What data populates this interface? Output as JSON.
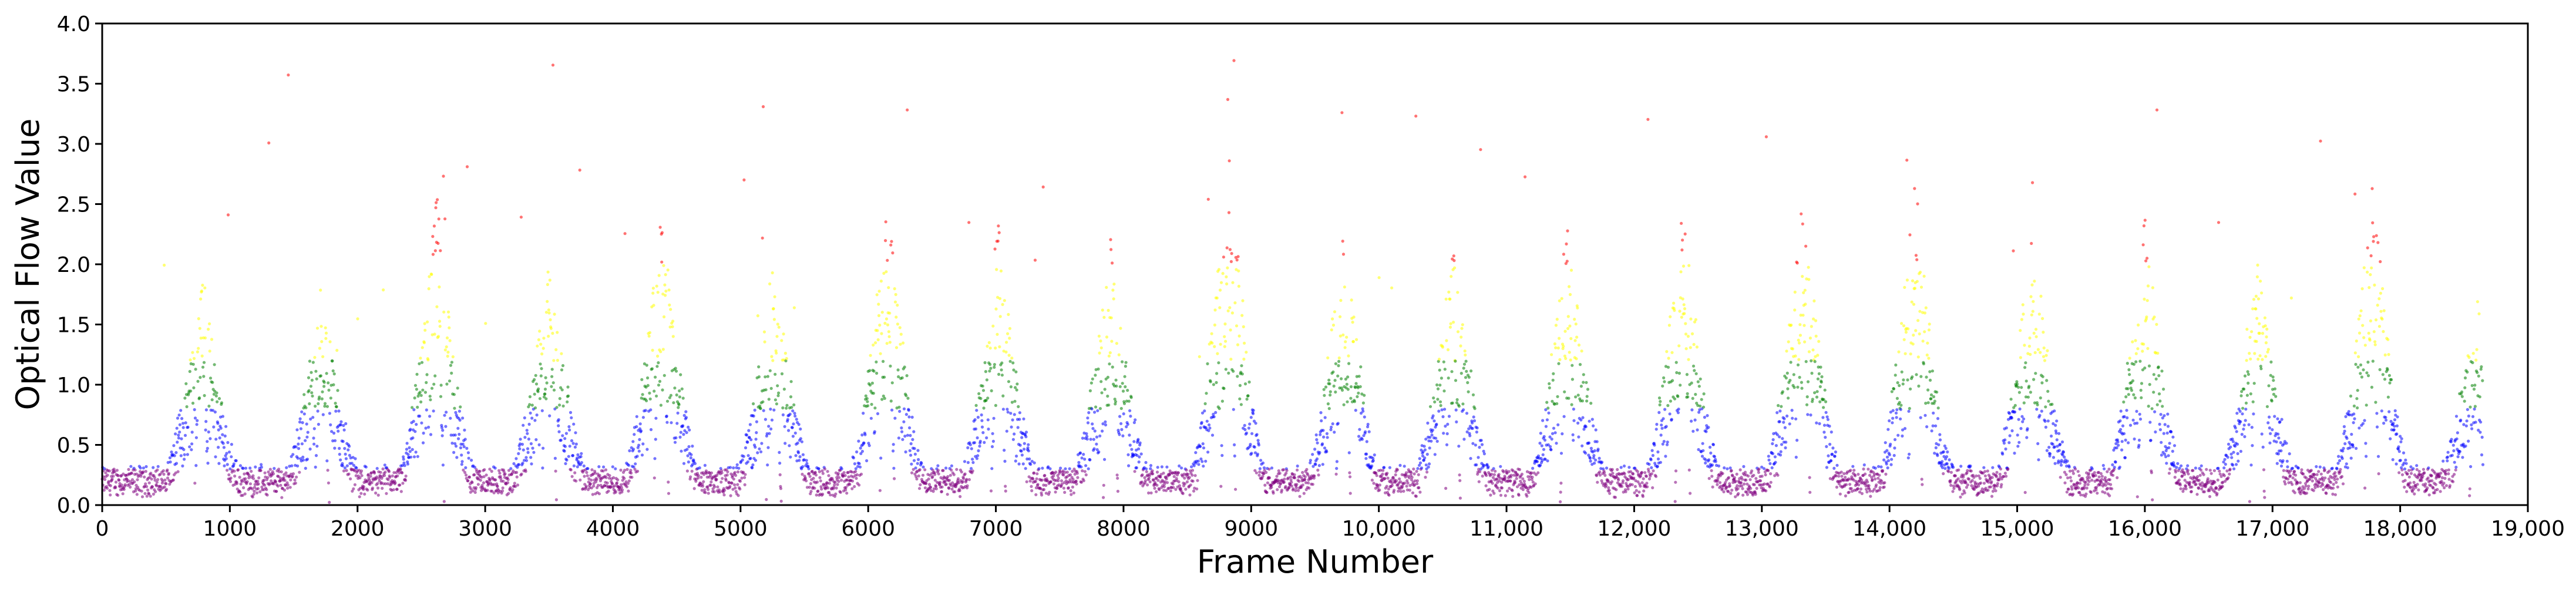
{
  "chart_data": {
    "type": "scatter",
    "title": "",
    "xlabel": "Frame Number",
    "ylabel": "Optical Flow Value",
    "xlim": [
      0,
      19000
    ],
    "ylim": [
      0.0,
      4.0
    ],
    "x_ticks": [
      {
        "value": 0,
        "label": "0"
      },
      {
        "value": 1000,
        "label": "1000"
      },
      {
        "value": 2000,
        "label": "2000"
      },
      {
        "value": 3000,
        "label": "3000"
      },
      {
        "value": 4000,
        "label": "4000"
      },
      {
        "value": 5000,
        "label": "5000"
      },
      {
        "value": 6000,
        "label": "6000"
      },
      {
        "value": 7000,
        "label": "7000"
      },
      {
        "value": 8000,
        "label": "8000"
      },
      {
        "value": 9000,
        "label": "9000"
      },
      {
        "value": 10000,
        "label": "10,000"
      },
      {
        "value": 11000,
        "label": "11,000"
      },
      {
        "value": 12000,
        "label": "12,000"
      },
      {
        "value": 13000,
        "label": "13,000"
      },
      {
        "value": 14000,
        "label": "14,000"
      },
      {
        "value": 15000,
        "label": "15,000"
      },
      {
        "value": 16000,
        "label": "16,000"
      },
      {
        "value": 17000,
        "label": "17,000"
      },
      {
        "value": 18000,
        "label": "18,000"
      },
      {
        "value": 19000,
        "label": "19,000"
      }
    ],
    "y_ticks": [
      {
        "value": 0.0,
        "label": "0.0"
      },
      {
        "value": 0.5,
        "label": "0.5"
      },
      {
        "value": 1.0,
        "label": "1.0"
      },
      {
        "value": 1.5,
        "label": "1.5"
      },
      {
        "value": 2.0,
        "label": "2.0"
      },
      {
        "value": 2.5,
        "label": "2.5"
      },
      {
        "value": 3.0,
        "label": "3.0"
      },
      {
        "value": 3.5,
        "label": "3.5"
      },
      {
        "value": 4.0,
        "label": "4.0"
      }
    ],
    "grid": false,
    "legend": "none",
    "data_range": [
      0,
      18650
    ],
    "color_bands": [
      {
        "min": 0.0,
        "max": 0.3,
        "color": "#800080"
      },
      {
        "min": 0.3,
        "max": 0.8,
        "color": "#0000ff"
      },
      {
        "min": 0.8,
        "max": 1.2,
        "color": "#008000"
      },
      {
        "min": 1.2,
        "max": 2.0,
        "color": "#ffff00"
      },
      {
        "min": 2.0,
        "max": 4.0,
        "color": "#ff0000"
      }
    ],
    "peaks": [
      {
        "x": 780,
        "y": 2.1
      },
      {
        "x": 1720,
        "y": 1.9
      },
      {
        "x": 2620,
        "y": 2.8
      },
      {
        "x": 3500,
        "y": 2.2
      },
      {
        "x": 4380,
        "y": 2.7
      },
      {
        "x": 5260,
        "y": 2.2
      },
      {
        "x": 6150,
        "y": 2.8
      },
      {
        "x": 7020,
        "y": 2.5
      },
      {
        "x": 7900,
        "y": 2.4
      },
      {
        "x": 8820,
        "y": 3.4
      },
      {
        "x": 9720,
        "y": 2.6
      },
      {
        "x": 10580,
        "y": 2.4
      },
      {
        "x": 11480,
        "y": 2.6
      },
      {
        "x": 12380,
        "y": 2.8
      },
      {
        "x": 13320,
        "y": 2.9
      },
      {
        "x": 14200,
        "y": 3.0
      },
      {
        "x": 15120,
        "y": 2.6
      },
      {
        "x": 16000,
        "y": 2.6
      },
      {
        "x": 16880,
        "y": 2.2
      },
      {
        "x": 17780,
        "y": 3.0
      },
      {
        "x": 18600,
        "y": 1.8
      }
    ]
  }
}
